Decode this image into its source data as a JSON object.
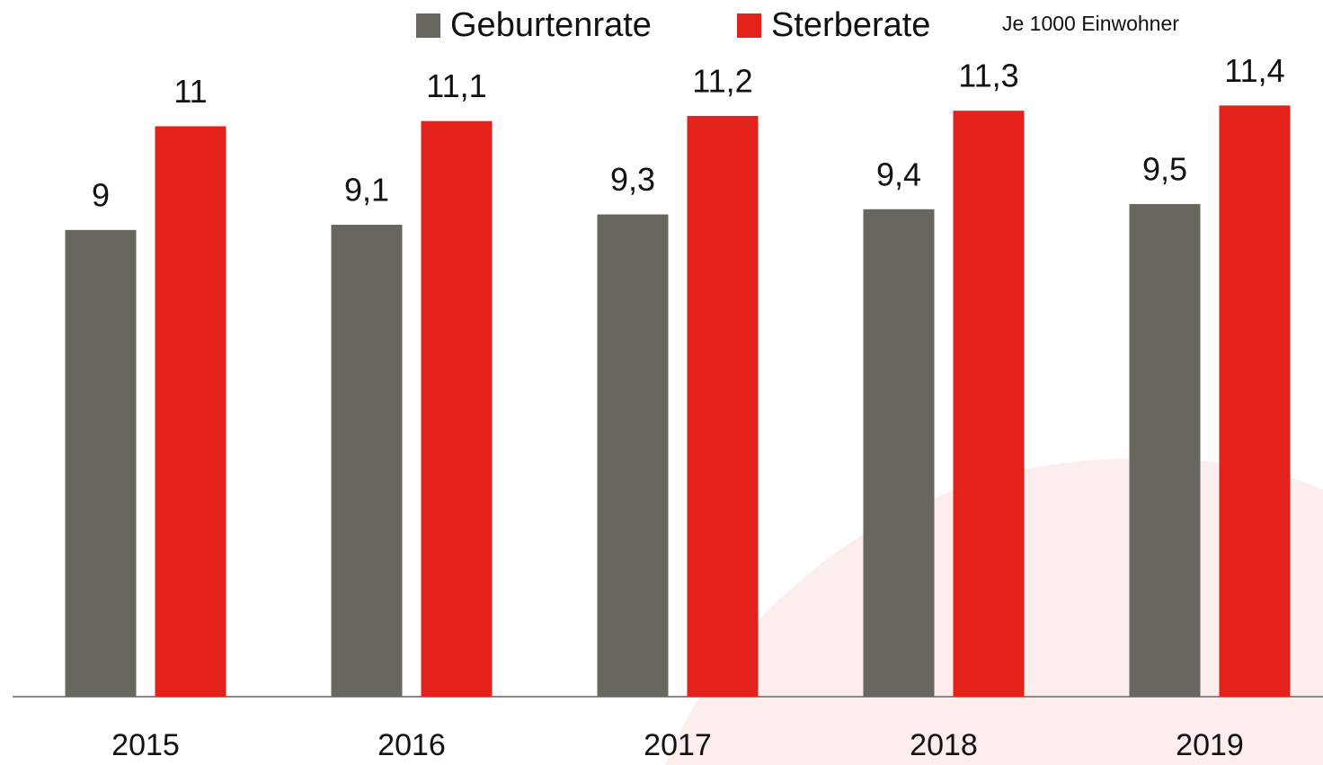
{
  "chart_data": {
    "type": "bar",
    "subtitle": "Je 1000 Einwohner",
    "categories": [
      "2015",
      "2016",
      "2017",
      "2018",
      "2019"
    ],
    "series": [
      {
        "name": "Geburtenrate",
        "color": "#67675f",
        "values": [
          9,
          9.1,
          9.3,
          9.4,
          9.5
        ],
        "value_labels": [
          "9",
          "9,1",
          "9,3",
          "9,4",
          "9,5"
        ]
      },
      {
        "name": "Sterberate",
        "color": "#e3221b",
        "values": [
          11,
          11.1,
          11.2,
          11.3,
          11.4
        ],
        "value_labels": [
          "11",
          "11,1",
          "11,2",
          "11,3",
          "11,4"
        ]
      }
    ],
    "ylim": [
      0,
      13.4
    ],
    "legend": "top"
  }
}
